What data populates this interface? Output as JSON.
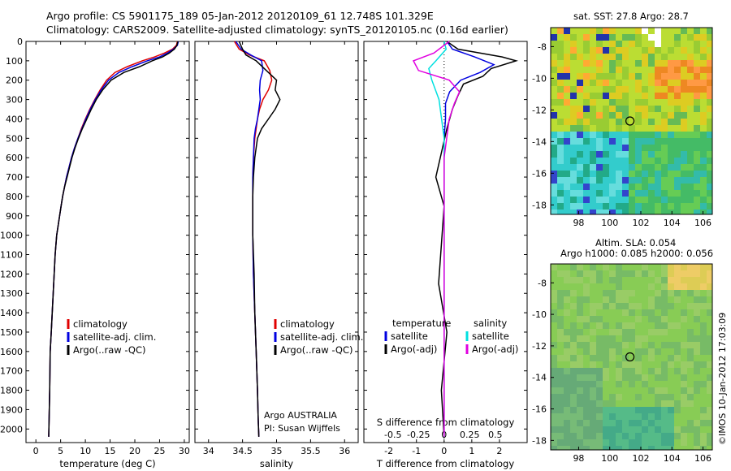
{
  "header": {
    "line1": "Argo profile: CS 5901175_189 05-Jan-2012 20120109_61 12.748S 101.329E",
    "line2": "Climatology: CARS2009. Satellite-adjusted climatology: synTS_20120105.nc (0.16d earlier)"
  },
  "sst_panel": {
    "title": "sat. SST: 27.8 Argo: 28.7"
  },
  "sla_panel": {
    "title1": "Altim. SLA: 0.054",
    "title2": "Argo h1000: 0.085 h2000: 0.056"
  },
  "credit": "©IMOS 10-Jan-2012 17:03:09",
  "colors": {
    "climatology": "#e00000",
    "satellite": "#0000e0",
    "argo": "#000000",
    "sal_sat": "#00e0e0",
    "sal_argo": "#e000e0"
  },
  "chart_data": [
    {
      "type": "line",
      "xlabel": "temperature (deg C)",
      "ylabel": "",
      "xlim": [
        -2,
        31
      ],
      "ylim": [
        2070,
        0
      ],
      "xticks": [
        0,
        5,
        10,
        15,
        20,
        25,
        30
      ],
      "yticks": [
        0,
        100,
        200,
        300,
        400,
        500,
        600,
        700,
        800,
        900,
        1000,
        1100,
        1200,
        1300,
        1400,
        1500,
        1600,
        1700,
        1800,
        1900,
        2000
      ],
      "legend": [
        "climatology",
        "satellite-adj. clim.",
        "Argo(..raw -QC)"
      ],
      "series": [
        {
          "name": "climatology",
          "x": [
            28.6,
            28.4,
            27.6,
            26,
            24,
            21.5,
            18.5,
            16,
            14.3,
            13,
            11.9,
            10.9,
            10,
            9.2,
            8.5,
            7.8,
            7.2,
            6.7,
            6.2,
            5.8,
            5.4,
            5.1,
            4.8,
            4.5,
            4.2,
            3.9,
            3.7,
            3.5,
            3.3,
            3.1,
            2.9,
            2.8,
            2.6
          ],
          "y": [
            0,
            20,
            40,
            60,
            80,
            100,
            130,
            160,
            200,
            250,
            300,
            350,
            400,
            450,
            500,
            550,
            600,
            650,
            700,
            750,
            800,
            850,
            900,
            950,
            1000,
            1100,
            1200,
            1300,
            1400,
            1500,
            1600,
            1800,
            2040
          ]
        },
        {
          "name": "satellite-adj. clim.",
          "x": [
            28.8,
            28.6,
            27.8,
            26.6,
            25,
            22.5,
            19.5,
            16.8,
            14.7,
            13.2,
            12,
            11,
            10.1,
            9.3,
            8.5,
            7.8,
            7.2,
            6.7,
            6.2,
            5.8,
            5.4,
            5.1,
            4.8,
            4.5,
            4.2,
            3.9,
            3.7,
            3.5,
            3.3,
            3.1,
            2.9,
            2.8,
            2.6
          ],
          "y": [
            0,
            20,
            40,
            60,
            80,
            100,
            130,
            160,
            200,
            250,
            300,
            350,
            400,
            450,
            500,
            550,
            600,
            650,
            700,
            750,
            800,
            850,
            900,
            950,
            1000,
            1100,
            1200,
            1300,
            1400,
            1500,
            1600,
            1800,
            2040
          ]
        },
        {
          "name": "Argo(..raw -QC)",
          "x": [
            28.7,
            28.5,
            28,
            27,
            25.6,
            23.5,
            21,
            17.8,
            15.2,
            13.5,
            12.2,
            11.2,
            10.3,
            9.4,
            8.6,
            7.9,
            7.3,
            6.8,
            6.3,
            5.8,
            5.4,
            5.1,
            4.8,
            4.5,
            4.2,
            3.9,
            3.7,
            3.5,
            3.3,
            3.1,
            2.9,
            2.8,
            2.6
          ],
          "y": [
            0,
            20,
            40,
            60,
            80,
            100,
            130,
            160,
            200,
            250,
            300,
            350,
            400,
            450,
            500,
            550,
            600,
            650,
            700,
            750,
            800,
            850,
            900,
            950,
            1000,
            1100,
            1200,
            1300,
            1400,
            1500,
            1600,
            1800,
            2040
          ]
        }
      ]
    },
    {
      "type": "line",
      "xlabel": "salinity",
      "xlim": [
        33.8,
        36.2
      ],
      "ylim": [
        2070,
        0
      ],
      "xticks": [
        34,
        34.5,
        35,
        35.5,
        36
      ],
      "legend": [
        "climatology",
        "satellite-adj. clim.",
        "Argo(..raw -QC)"
      ],
      "annotations": [
        "Argo AUSTRALIA",
        "PI: Susan Wijffels"
      ],
      "series": [
        {
          "name": "climatology",
          "x": [
            34.38,
            34.45,
            34.6,
            34.82,
            34.9,
            34.93,
            34.88,
            34.8,
            34.75,
            34.72,
            34.7,
            34.68,
            34.66,
            34.65,
            34.65,
            34.65,
            34.66,
            34.68,
            34.7,
            34.72,
            34.73,
            34.74
          ],
          "y": [
            0,
            40,
            70,
            100,
            150,
            200,
            250,
            300,
            350,
            400,
            450,
            500,
            600,
            700,
            800,
            1000,
            1200,
            1400,
            1600,
            1800,
            1950,
            2040
          ]
        },
        {
          "name": "satellite-adj. clim.",
          "x": [
            34.4,
            34.48,
            34.62,
            34.78,
            34.8,
            34.76,
            34.75,
            34.76,
            34.74,
            34.72,
            34.69,
            34.67,
            34.66,
            34.65,
            34.65,
            34.65,
            34.66,
            34.68,
            34.7,
            34.72,
            34.73,
            34.74
          ],
          "y": [
            0,
            40,
            70,
            100,
            150,
            200,
            250,
            300,
            350,
            400,
            450,
            500,
            600,
            700,
            800,
            1000,
            1200,
            1400,
            1600,
            1800,
            1950,
            2040
          ]
        },
        {
          "name": "Argo(..raw -QC)",
          "x": [
            34.45,
            34.5,
            34.55,
            34.7,
            34.85,
            35,
            34.98,
            35.05,
            34.98,
            34.88,
            34.78,
            34.72,
            34.68,
            34.66,
            34.65,
            34.65,
            34.67,
            34.68,
            34.7,
            34.72,
            34.73,
            34.74
          ],
          "y": [
            0,
            40,
            70,
            100,
            150,
            200,
            250,
            300,
            350,
            400,
            450,
            500,
            600,
            700,
            800,
            1000,
            1200,
            1400,
            1600,
            1800,
            1950,
            2040
          ]
        }
      ]
    },
    {
      "type": "line",
      "xlabel": "T difference from climatology",
      "xlabel2": "S difference from climatology",
      "xlim": [
        -2.9,
        3.0
      ],
      "ylim": [
        2070,
        0
      ],
      "xticks": [
        -2,
        -1,
        0,
        1,
        2
      ],
      "xticks2": [
        -0.5,
        -0.25,
        0,
        0.25,
        0.5
      ],
      "xticks2_labels": [
        "-0.5",
        "-0.25",
        "0",
        "0.25",
        "0.5"
      ],
      "legend_headers": [
        "temperature",
        "salinity"
      ],
      "legend": [
        "satellite",
        "Argo(-adj)",
        "satellite",
        "Argo(-adj)"
      ],
      "series": [
        {
          "name": "satellite",
          "group": "temperature",
          "x": [
            0.1,
            0.3,
            1.1,
            1.8,
            1.3,
            0.6,
            0.2,
            0.05,
            0.05,
            0,
            0,
            0,
            0,
            0,
            0,
            0
          ],
          "y": [
            0,
            40,
            80,
            120,
            160,
            200,
            260,
            320,
            400,
            500,
            700,
            900,
            1200,
            1500,
            1800,
            2040
          ]
        },
        {
          "name": "Argo(-adj)",
          "group": "temperature",
          "x": [
            0.1,
            0.5,
            2.1,
            2.6,
            1.7,
            1.4,
            0.7,
            0.5,
            0.3,
            0.1,
            -0.3,
            0,
            -0.2,
            0.1,
            -0.1,
            0
          ],
          "y": [
            0,
            40,
            80,
            100,
            140,
            180,
            220,
            280,
            350,
            450,
            700,
            850,
            1250,
            1500,
            1800,
            2040
          ]
        },
        {
          "name": "satellite",
          "group": "salinity",
          "x": [
            0,
            0.02,
            -0.08,
            -0.15,
            -0.12,
            -0.05,
            0,
            0,
            0,
            0,
            0
          ],
          "y": [
            0,
            40,
            100,
            140,
            200,
            300,
            500,
            800,
            1200,
            1600,
            2040
          ]
        },
        {
          "name": "Argo(-adj)",
          "group": "salinity",
          "x": [
            0.05,
            -0.1,
            -0.3,
            -0.25,
            0.05,
            0.15,
            0.1,
            0.05,
            0,
            0,
            0,
            0
          ],
          "y": [
            0,
            60,
            100,
            150,
            200,
            260,
            320,
            400,
            600,
            1000,
            1500,
            2040
          ]
        }
      ]
    },
    {
      "type": "heatmap",
      "title": "sat. SST: 27.8 Argo: 28.7",
      "xlim": [
        96.2,
        106.6
      ],
      "ylim": [
        -18.6,
        -6.8
      ],
      "xticks": [
        98,
        100,
        102,
        104,
        106
      ],
      "yticks": [
        -8,
        -10,
        -12,
        -14,
        -16,
        -18
      ],
      "marker": [
        101.3,
        -12.7
      ]
    },
    {
      "type": "heatmap",
      "title": "Altim. SLA: 0.054",
      "subtitle": "Argo h1000: 0.085 h2000: 0.056",
      "xlim": [
        96.2,
        106.6
      ],
      "ylim": [
        -18.6,
        -6.8
      ],
      "xticks": [
        98,
        100,
        102,
        104,
        106
      ],
      "yticks": [
        -8,
        -10,
        -12,
        -14,
        -16,
        -18
      ],
      "marker": [
        101.3,
        -12.7
      ]
    }
  ]
}
